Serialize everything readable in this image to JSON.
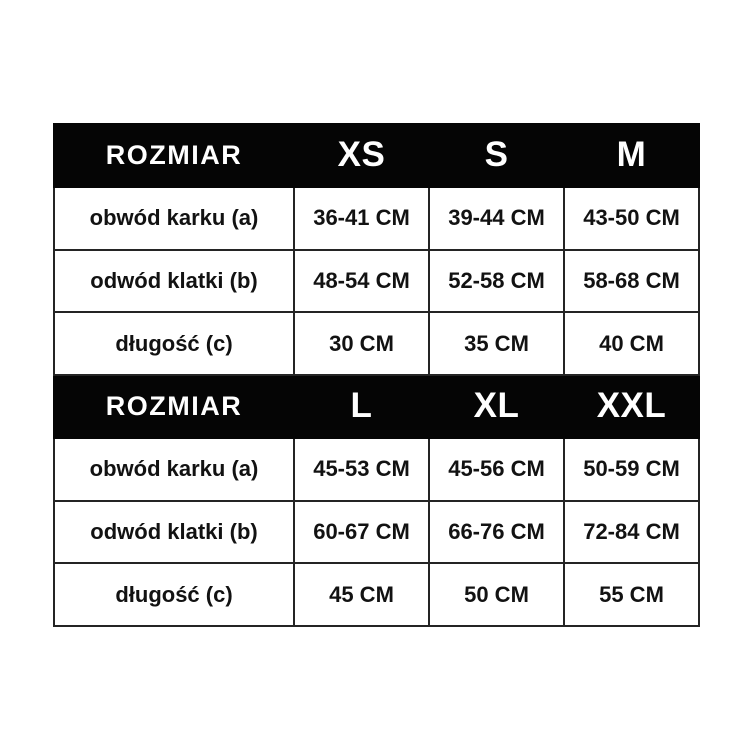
{
  "chart_data": {
    "type": "table",
    "title": "",
    "unit": "CM",
    "columns_layout": [
      "measurement",
      "size-1",
      "size-2",
      "size-3"
    ],
    "sections": [
      {
        "header": [
          "ROZMIAR",
          "XS",
          "S",
          "M"
        ],
        "rows": [
          [
            "obwód karku (a)",
            "36-41 CM",
            "39-44 CM",
            "43-50 CM"
          ],
          [
            "odwód klatki (b)",
            "48-54 CM",
            "52-58 CM",
            "58-68 CM"
          ],
          [
            "długość (c)",
            "30 CM",
            "35 CM",
            "40 CM"
          ]
        ]
      },
      {
        "header": [
          "ROZMIAR",
          "L",
          "XL",
          "XXL"
        ],
        "rows": [
          [
            "obwód karku (a)",
            "45-53 CM",
            "45-56 CM",
            "50-59 CM"
          ],
          [
            "odwód klatki (b)",
            "60-67 CM",
            "66-76 CM",
            "72-84 CM"
          ],
          [
            "długość (c)",
            "45 CM",
            "50 CM",
            "55 CM"
          ]
        ]
      }
    ]
  },
  "colors": {
    "page_background": "#ffffff",
    "header_background": "#050505",
    "header_text": "#ffffff",
    "body_text": "#121212",
    "border": "#242424"
  }
}
